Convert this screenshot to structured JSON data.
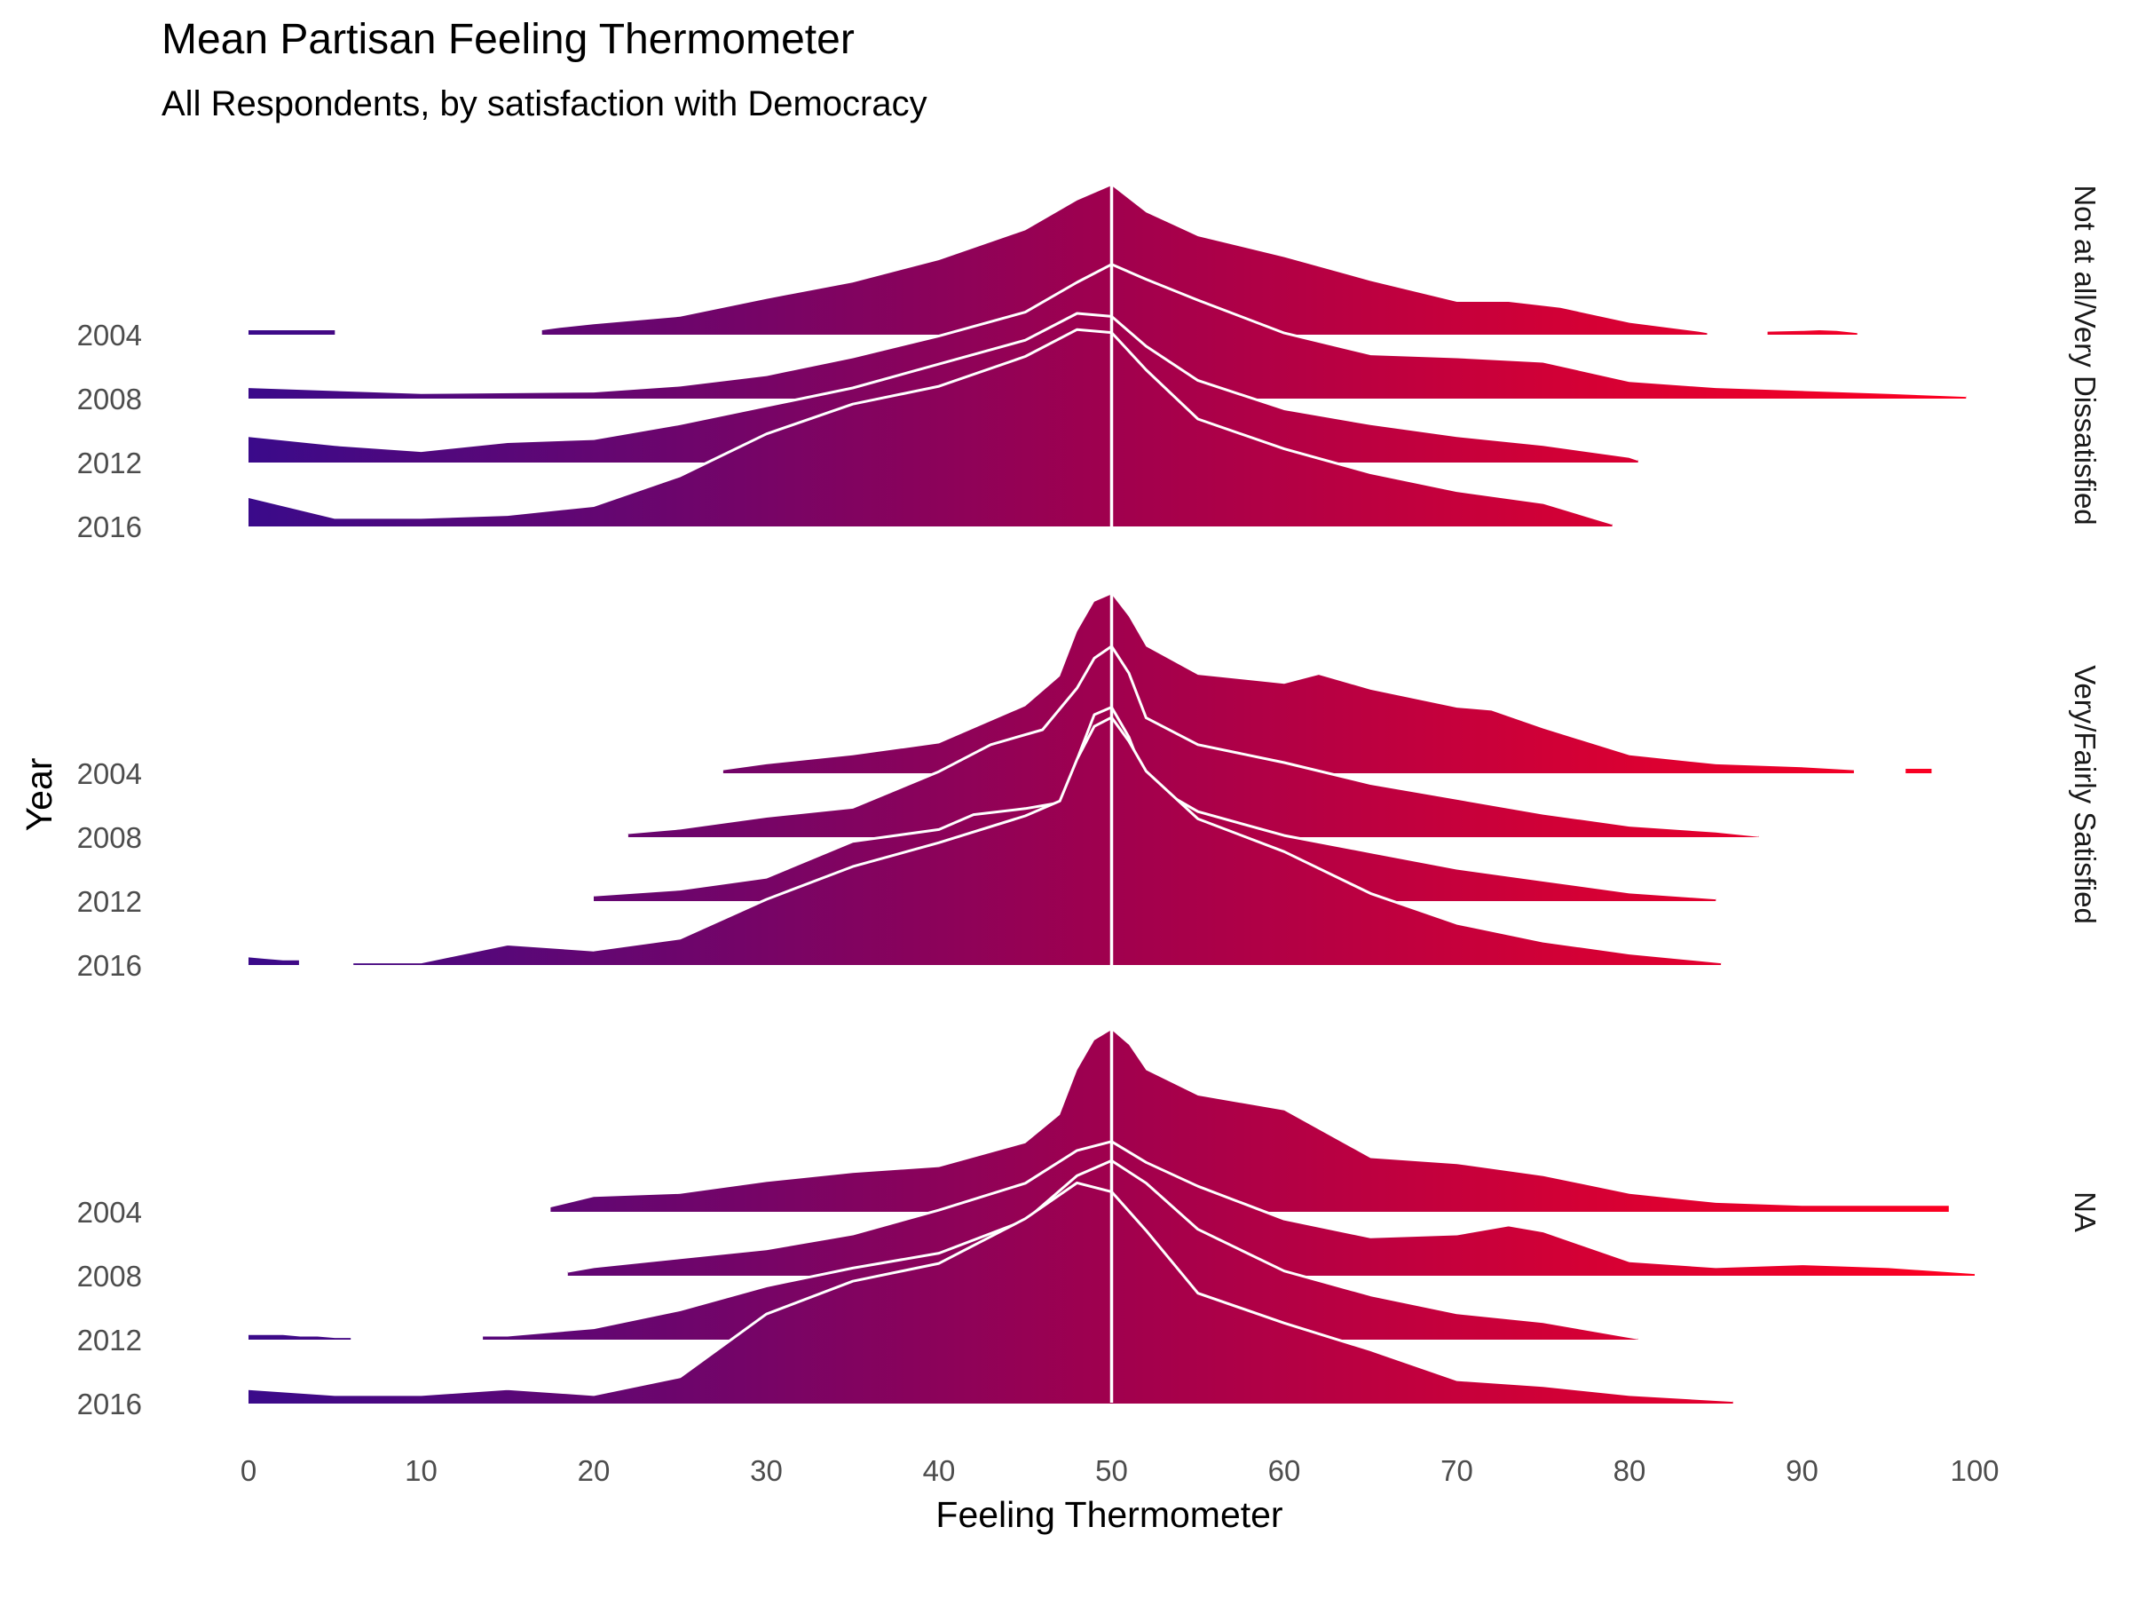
{
  "chart_data": {
    "type": "ridgeline",
    "title": "Mean Partisan Feeling Thermometer",
    "subtitle": "All Respondents, by satisfaction with Democracy",
    "xlabel": "Feeling Thermometer",
    "ylabel": "Year",
    "xlim": [
      0,
      100
    ],
    "x_ticks": [
      0,
      10,
      20,
      30,
      40,
      50,
      60,
      70,
      80,
      90,
      100
    ],
    "reference_line_x": 50,
    "fill_gradient": {
      "low": "#3a0a8a",
      "mid": "#a0004e",
      "high": "#ff0020"
    },
    "outline_color": "#ffffff",
    "grid": false,
    "legend": "none",
    "facets": [
      {
        "label": "Not at all/Very Dissatisfied",
        "years": [
          "2004",
          "2008",
          "2012",
          "2016"
        ],
        "series": [
          {
            "name": "2004",
            "x": [
              0,
              1,
              2,
              3,
              4,
              5,
              5.001,
              17,
              17.001,
              18,
              20,
              25,
              30,
              35,
              40,
              45,
              48,
              50,
              52,
              55,
              60,
              65,
              70,
              73,
              76,
              80,
              84,
              84.5,
              84.501,
              88,
              88.001,
              90,
              91,
              92,
              93.2
            ],
            "y": [
              0.03,
              0.03,
              0.03,
              0.03,
              0.03,
              0.03,
              0,
              0,
              0.03,
              0.045,
              0.07,
              0.12,
              0.24,
              0.35,
              0.5,
              0.7,
              0.9,
              1.0,
              0.82,
              0.66,
              0.52,
              0.36,
              0.22,
              0.22,
              0.18,
              0.08,
              0.02,
              0.01,
              0,
              0,
              0.02,
              0.025,
              0.03,
              0.025,
              0.01
            ]
          },
          {
            "name": "2008",
            "x": [
              0,
              10,
              20,
              25,
              30,
              35,
              40,
              45,
              48,
              50,
              52,
              55,
              60,
              65,
              70,
              75,
              80,
              85,
              90,
              95,
              99.5
            ],
            "y": [
              0.08,
              0.04,
              0.05,
              0.09,
              0.16,
              0.28,
              0.42,
              0.58,
              0.78,
              0.9,
              0.8,
              0.66,
              0.44,
              0.3,
              0.28,
              0.25,
              0.12,
              0.08,
              0.06,
              0.04,
              0.02
            ]
          },
          {
            "name": "2012",
            "x": [
              0,
              5,
              10,
              15,
              20,
              25,
              30,
              35,
              40,
              45,
              48,
              50,
              52,
              55,
              60,
              65,
              70,
              75,
              80,
              80.5
            ],
            "y": [
              0.18,
              0.12,
              0.08,
              0.14,
              0.16,
              0.26,
              0.38,
              0.5,
              0.66,
              0.82,
              1.0,
              0.98,
              0.78,
              0.55,
              0.36,
              0.26,
              0.18,
              0.12,
              0.04,
              0.02
            ]
          },
          {
            "name": "2016",
            "x": [
              0,
              5,
              10,
              15,
              20,
              25,
              30,
              35,
              40,
              45,
              48,
              50,
              52,
              55,
              60,
              65,
              70,
              75,
              79
            ],
            "y": [
              0.2,
              0.06,
              0.06,
              0.08,
              0.14,
              0.34,
              0.62,
              0.82,
              0.94,
              1.14,
              1.32,
              1.3,
              1.05,
              0.72,
              0.52,
              0.36,
              0.24,
              0.16,
              0.02
            ]
          }
        ]
      },
      {
        "label": "Very/Fairly Satisfied",
        "years": [
          "2004",
          "2008",
          "2012",
          "2016"
        ],
        "series": [
          {
            "name": "2004",
            "x": [
              27.5,
              30,
              35,
              40,
              45,
              47,
              48,
              49,
              50,
              51,
              52,
              55,
              60,
              62,
              65,
              70,
              72,
              75,
              80,
              85,
              90,
              93,
              93.001,
              96,
              96.001,
              97.5
            ],
            "y": [
              0.02,
              0.06,
              0.12,
              0.2,
              0.45,
              0.65,
              0.95,
              1.15,
              1.2,
              1.05,
              0.85,
              0.66,
              0.6,
              0.66,
              0.56,
              0.44,
              0.42,
              0.3,
              0.12,
              0.06,
              0.04,
              0.02,
              0,
              0,
              0.03,
              0.03
            ]
          },
          {
            "name": "2008",
            "x": [
              22,
              25,
              30,
              35,
              40,
              43,
              46,
              48,
              49,
              50,
              51,
              52,
              55,
              60,
              65,
              70,
              75,
              80,
              85,
              87.5
            ],
            "y": [
              0.03,
              0.06,
              0.14,
              0.2,
              0.44,
              0.62,
              0.72,
              1.0,
              1.2,
              1.28,
              1.1,
              0.8,
              0.62,
              0.5,
              0.36,
              0.26,
              0.16,
              0.08,
              0.04,
              0.01
            ]
          },
          {
            "name": "2012",
            "x": [
              20,
              25,
              30,
              35,
              40,
              42,
              45,
              47,
              48,
              49,
              50,
              51,
              52,
              55,
              60,
              65,
              70,
              75,
              80,
              85
            ],
            "y": [
              0.04,
              0.08,
              0.16,
              0.4,
              0.48,
              0.58,
              0.62,
              0.66,
              0.95,
              1.25,
              1.3,
              1.1,
              0.8,
              0.6,
              0.44,
              0.33,
              0.22,
              0.14,
              0.06,
              0.02
            ]
          },
          {
            "name": "2016",
            "x": [
              0,
              1,
              2,
              3,
              3.001,
              6,
              6.001,
              10,
              15,
              20,
              25,
              30,
              35,
              40,
              45,
              47,
              48,
              49,
              50,
              51,
              52,
              55,
              60,
              65,
              70,
              75,
              80,
              85.3
            ],
            "y": [
              0.06,
              0.05,
              0.04,
              0.04,
              0,
              0,
              0.02,
              0.02,
              0.14,
              0.1,
              0.18,
              0.44,
              0.66,
              0.82,
              1.0,
              1.1,
              1.38,
              1.6,
              1.66,
              1.5,
              1.3,
              0.98,
              0.76,
              0.48,
              0.28,
              0.16,
              0.08,
              0.02
            ]
          }
        ]
      },
      {
        "label": "NA",
        "years": [
          "2004",
          "2008",
          "2012",
          "2016"
        ],
        "series": [
          {
            "name": "2004",
            "x": [
              17.5,
              20,
              25,
              30,
              35,
              40,
              45,
              47,
              48,
              49,
              50,
              51,
              52,
              55,
              60,
              65,
              70,
              75,
              80,
              85,
              90,
              95,
              98.5
            ],
            "y": [
              0.03,
              0.1,
              0.12,
              0.2,
              0.26,
              0.3,
              0.46,
              0.65,
              0.95,
              1.15,
              1.22,
              1.12,
              0.95,
              0.78,
              0.68,
              0.36,
              0.32,
              0.24,
              0.12,
              0.06,
              0.04,
              0.04,
              0.04
            ]
          },
          {
            "name": "2008",
            "x": [
              18.5,
              20,
              25,
              30,
              35,
              40,
              45,
              48,
              50,
              52,
              55,
              60,
              65,
              70,
              73,
              75,
              80,
              85,
              90,
              95,
              100
            ],
            "y": [
              0.03,
              0.06,
              0.12,
              0.18,
              0.28,
              0.44,
              0.62,
              0.84,
              0.9,
              0.76,
              0.6,
              0.38,
              0.26,
              0.28,
              0.34,
              0.3,
              0.1,
              0.06,
              0.08,
              0.06,
              0.02
            ]
          },
          {
            "name": "2012",
            "x": [
              0,
              1,
              2,
              3,
              4,
              5,
              6,
              6.001,
              13.5,
              13.501,
              15,
              20,
              25,
              30,
              35,
              40,
              45,
              48,
              50,
              52,
              55,
              60,
              65,
              70,
              75,
              80,
              80.5
            ],
            "y": [
              0.04,
              0.04,
              0.04,
              0.03,
              0.03,
              0.02,
              0.02,
              0,
              0,
              0.03,
              0.03,
              0.08,
              0.2,
              0.36,
              0.48,
              0.58,
              0.8,
              1.1,
              1.2,
              1.05,
              0.74,
              0.46,
              0.3,
              0.18,
              0.12,
              0.02,
              0.01
            ]
          },
          {
            "name": "2016",
            "x": [
              0,
              5,
              10,
              15,
              20,
              25,
              30,
              35,
              40,
              45,
              48,
              50,
              52,
              55,
              60,
              65,
              70,
              75,
              80,
              86
            ],
            "y": [
              0.1,
              0.06,
              0.06,
              0.1,
              0.06,
              0.18,
              0.6,
              0.82,
              0.94,
              1.24,
              1.48,
              1.42,
              1.16,
              0.74,
              0.54,
              0.36,
              0.16,
              0.12,
              0.06,
              0.02
            ]
          }
        ]
      }
    ]
  }
}
